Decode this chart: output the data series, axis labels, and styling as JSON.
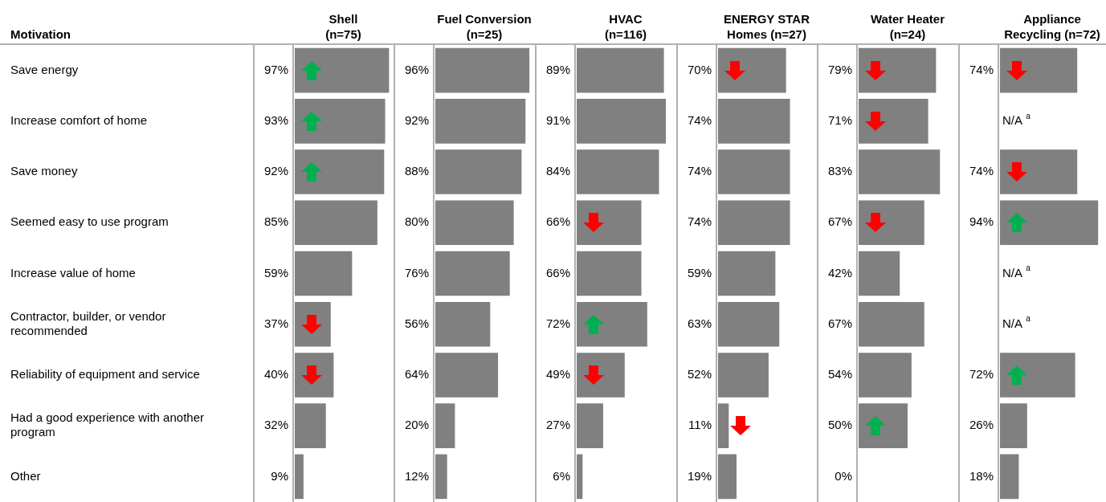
{
  "chart_data": [
    {
      "type": "bar",
      "orientation": "horizontal",
      "title": "Shell\n(n=75)",
      "ylabel": "Motivation",
      "tick_labels": "y",
      "color": "#808080",
      "xlim": [
        0,
        100
      ],
      "categories": [
        "Save energy",
        "Increase comfort of home",
        "Save money",
        "Seemed easy to use program",
        "Increase value of home",
        "Contractor, builder, or vendor recommended",
        "Reliability of equipment and service",
        "Had a good experience with another program",
        "Other"
      ],
      "values": [
        97,
        93,
        92,
        85,
        59,
        37,
        40,
        32,
        9
      ],
      "value_labels": [
        "97%",
        "93%",
        "92%",
        "85%",
        "59%",
        "37%",
        "40%",
        "32%",
        "9%"
      ]
    },
    {
      "type": "bar",
      "orientation": "horizontal",
      "title": "Fuel Conversion\n(n=25)",
      "tick_labels": false,
      "color": "#808080",
      "xlim": [
        0,
        100
      ],
      "categories": [
        null,
        null,
        null,
        null,
        null,
        null,
        null,
        null,
        null
      ],
      "values": [
        96,
        92,
        88,
        80,
        76,
        56,
        64,
        20,
        12
      ],
      "value_labels": [
        "96%",
        "92%",
        "88%",
        "80%",
        "76%",
        "56%",
        "64%",
        "20%",
        "12%"
      ]
    },
    {
      "type": "bar",
      "orientation": "horizontal",
      "title": "HVAC\n(n=116)",
      "tick_labels": false,
      "color": "#808080",
      "xlim": [
        0,
        100
      ],
      "categories": [
        null,
        null,
        null,
        null,
        null,
        null,
        null,
        null,
        null
      ],
      "values": [
        89,
        91,
        84,
        66,
        66,
        72,
        49,
        27,
        6
      ],
      "value_labels": [
        "89%",
        "91%",
        "84%",
        "66%",
        "66%",
        "72%",
        "49%",
        "27%",
        "6%"
      ]
    },
    {
      "type": "bar",
      "orientation": "horizontal",
      "title": "ENERGY STAR\nHomes (n=27)",
      "tick_labels": false,
      "color": "#808080",
      "xlim": [
        0,
        100
      ],
      "categories": [
        null,
        null,
        null,
        null,
        null,
        null,
        null,
        null,
        null
      ],
      "values": [
        70,
        74,
        74,
        74,
        59,
        63,
        52,
        11,
        19
      ],
      "value_labels": [
        "70%",
        "74%",
        "74%",
        "74%",
        "59%",
        "63%",
        "52%",
        "11%",
        "19%"
      ]
    },
    {
      "type": "bar",
      "orientation": "horizontal",
      "title": "Water Heater\n(n=24)",
      "tick_labels": false,
      "color": "#808080",
      "xlim": [
        0,
        100
      ],
      "categories": [
        null,
        null,
        null,
        null,
        null,
        null,
        null,
        null,
        null
      ],
      "values": [
        79,
        71,
        83,
        67,
        42,
        67,
        54,
        50,
        0
      ],
      "value_labels": [
        "79%",
        "71%",
        "83%",
        "67%",
        "42%",
        "67%",
        "54%",
        "50%",
        "0%"
      ]
    },
    {
      "type": "bar",
      "orientation": "horizontal",
      "title": "Appliance\nRecycling (n=72)",
      "tick_labels": false,
      "color": "#808080",
      "xlim": [
        0,
        100
      ],
      "categories": [
        null,
        null,
        null,
        null,
        null,
        null,
        null,
        null,
        null
      ],
      "values": [
        74,
        null,
        74,
        94,
        null,
        null,
        72,
        26,
        18
      ],
      "value_labels": [
        "74%",
        "N/A $^{a}$",
        "74%",
        "94%",
        "N/A $^{a}$",
        "N/A $^{a}$",
        "72%",
        "26%",
        "18%"
      ]
    }
  ]
}
